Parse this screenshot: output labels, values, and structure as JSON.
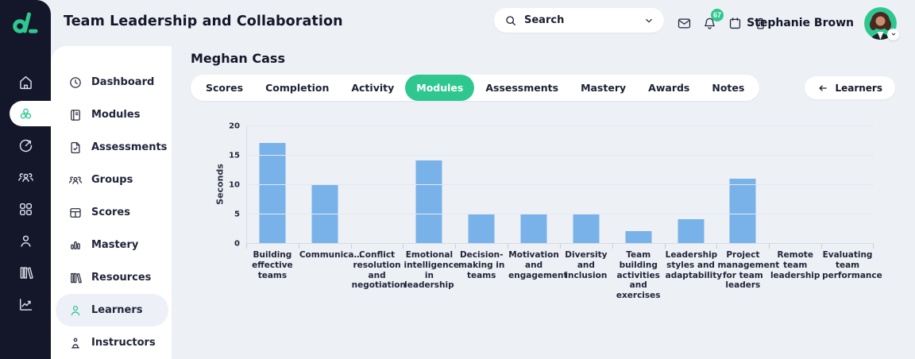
{
  "app": {
    "logo_glyph": "cl"
  },
  "header": {
    "title": "Team Leadership and Collaboration",
    "search": {
      "placeholder": "Search",
      "icon": "search",
      "dropdown_icon": "chevron-down"
    },
    "icons": [
      {
        "name": "mail",
        "icon": "mail"
      },
      {
        "name": "notifications",
        "icon": "bell",
        "badge": "67"
      },
      {
        "name": "calendar",
        "icon": "calendar"
      },
      {
        "name": "trash",
        "icon": "trash"
      }
    ],
    "user": {
      "name": "Stephanie Brown",
      "avatar": "woman-portrait",
      "dropdown_icon": "chevron-down"
    }
  },
  "rail": {
    "items": [
      {
        "name": "home",
        "icon": "home",
        "active": false
      },
      {
        "name": "modules",
        "icon": "cluster",
        "active": true
      },
      {
        "name": "performance",
        "icon": "target",
        "active": false
      },
      {
        "name": "groups",
        "icon": "team",
        "active": false
      },
      {
        "name": "apps",
        "icon": "apps",
        "active": false
      },
      {
        "name": "profile",
        "icon": "user",
        "active": false
      },
      {
        "name": "library",
        "icon": "library",
        "active": false
      },
      {
        "name": "analytics",
        "icon": "analytics",
        "active": false
      }
    ]
  },
  "sidebar": {
    "items": [
      {
        "label": "Dashboard",
        "icon": "dashboard",
        "active": false
      },
      {
        "label": "Modules",
        "icon": "book",
        "active": false
      },
      {
        "label": "Assessments",
        "icon": "assessment",
        "active": false
      },
      {
        "label": "Groups",
        "icon": "team",
        "active": false
      },
      {
        "label": "Scores",
        "icon": "table",
        "active": false
      },
      {
        "label": "Mastery",
        "icon": "bars",
        "active": false
      },
      {
        "label": "Resources",
        "icon": "library",
        "active": false
      },
      {
        "label": "Learners",
        "icon": "user",
        "active": true
      },
      {
        "label": "Instructors",
        "icon": "instructor",
        "active": false
      }
    ]
  },
  "main": {
    "learner_name": "Meghan Cass",
    "tabs": [
      {
        "label": "Scores",
        "active": false
      },
      {
        "label": "Completion",
        "active": false
      },
      {
        "label": "Activity",
        "active": false
      },
      {
        "label": "Modules",
        "active": true
      },
      {
        "label": "Assessments",
        "active": false
      },
      {
        "label": "Mastery",
        "active": false
      },
      {
        "label": "Awards",
        "active": false
      },
      {
        "label": "Notes",
        "active": false
      }
    ],
    "back_button": {
      "label": "Learners",
      "icon": "arrow-left"
    }
  },
  "chart_data": {
    "type": "bar",
    "title": "",
    "xlabel": "",
    "ylabel": "Seconds",
    "ylim": [
      0,
      20
    ],
    "yticks": [
      0,
      5,
      10,
      15,
      20
    ],
    "grid": true,
    "legend": false,
    "bar_color": "#78b2e9",
    "categories": [
      "Building effective teams",
      "Communica…",
      "Conflict resolution and negotiation",
      "Emotional intelligence in leadership",
      "Decision-making in teams",
      "Motivation and engagement",
      "Diversity and inclusion",
      "Team building activities and exercises",
      "Leadership styles and adaptability",
      "Project management for team leaders",
      "Remote team leadership",
      "Evaluating team performance"
    ],
    "values": [
      17,
      10,
      0,
      14,
      5,
      5,
      5,
      2,
      4,
      11,
      0,
      0
    ]
  },
  "colors": {
    "accent_green": "#2ec78f",
    "bar_blue": "#78b2e9",
    "sidebar_navy": "#14162a",
    "page_bg": "#edf0f5",
    "panel_white": "#ffffff",
    "text_dark": "#15172a"
  }
}
